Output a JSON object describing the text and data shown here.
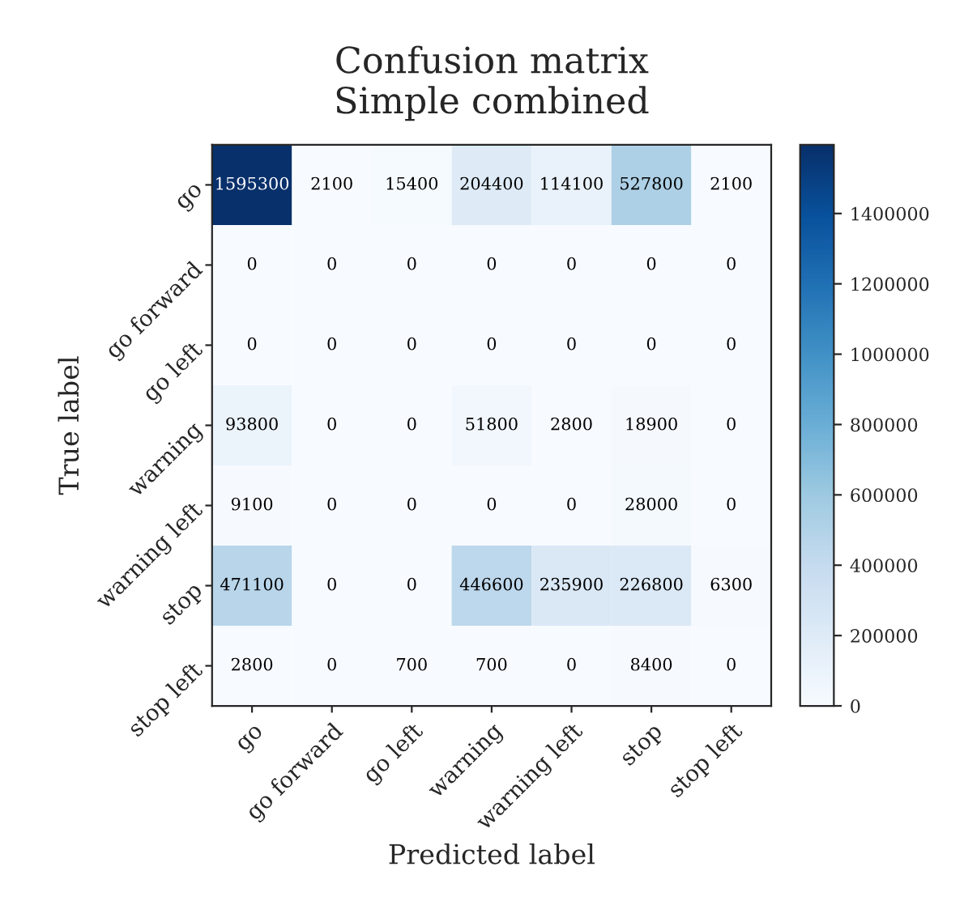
{
  "chart_data": {
    "type": "heatmap",
    "title": "Confusion matrix\nSimple combined",
    "xlabel": "Predicted label",
    "ylabel": "True label",
    "categories": [
      "go",
      "go forward",
      "go left",
      "warning",
      "warning left",
      "stop",
      "stop left"
    ],
    "y_categories": [
      "go",
      "go forward",
      "go left",
      "warning",
      "warning left",
      "stop",
      "stop left"
    ],
    "cells": [
      [
        1595300,
        2100,
        15400,
        204400,
        114100,
        527800,
        2100
      ],
      [
        0,
        0,
        0,
        0,
        0,
        0,
        0
      ],
      [
        0,
        0,
        0,
        0,
        0,
        0,
        0
      ],
      [
        93800,
        0,
        0,
        51800,
        2800,
        18900,
        0
      ],
      [
        9100,
        0,
        0,
        0,
        0,
        28000,
        0
      ],
      [
        471100,
        0,
        0,
        446600,
        235900,
        226800,
        6300
      ],
      [
        2800,
        0,
        700,
        700,
        0,
        8400,
        0
      ]
    ],
    "clim": [
      0,
      1595300
    ],
    "cticks": [
      0,
      200000,
      400000,
      600000,
      800000,
      1000000,
      1200000,
      1400000
    ],
    "data_labels": true
  }
}
